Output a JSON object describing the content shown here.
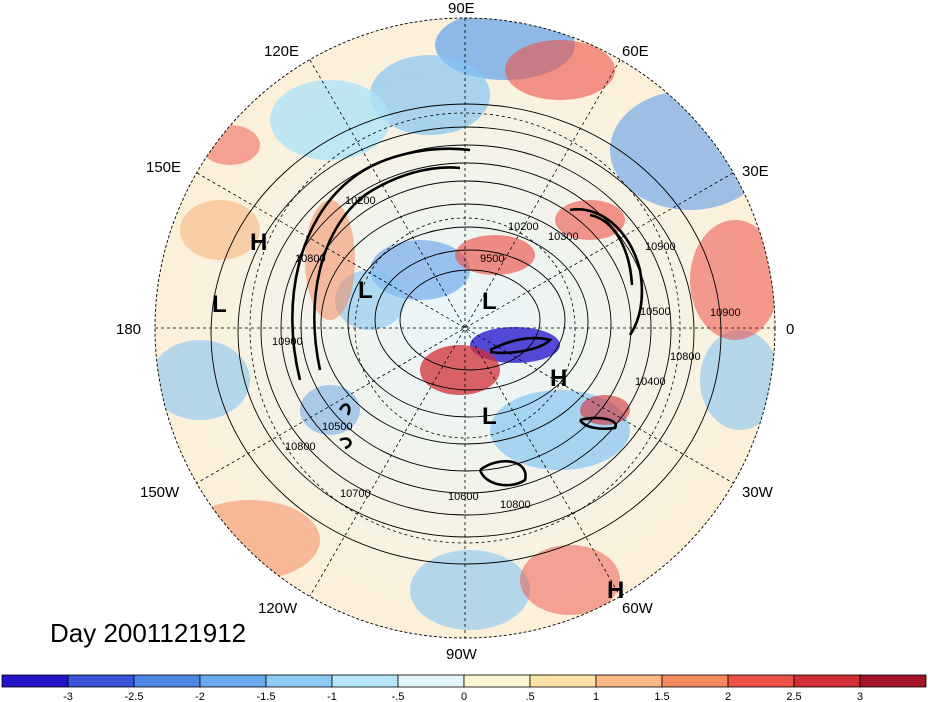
{
  "title": "Day 2001121912",
  "longitude_labels": {
    "lon_90e": "90E",
    "lon_60e": "60E",
    "lon_30e": "30E",
    "lon_0": "0",
    "lon_30w": "30W",
    "lon_60w": "60W",
    "lon_90w": "90W",
    "lon_120w": "120W",
    "lon_150w": "150W",
    "lon_180": "180",
    "lon_150e": "150E",
    "lon_120e": "120E"
  },
  "pressure_systems": {
    "h1": "H",
    "l1": "L",
    "l2": "L",
    "l3": "L",
    "h2": "H",
    "l4": "L",
    "h3": "H"
  },
  "contour_labels": {
    "c1": "10200",
    "c2": "9500",
    "c3": "10200",
    "c4": "10900",
    "c5": "10800",
    "c6": "10700",
    "c7": "10600",
    "c8": "10800",
    "c9": "10800",
    "c10": "10400",
    "c11": "10500",
    "c12": "10900",
    "c13": "10800",
    "c14": "10300",
    "c15": "10500",
    "c16": "10900"
  },
  "colorbar": {
    "ticks": [
      "-3",
      "-2.5",
      "-2",
      "-1.5",
      "-1",
      "-.5",
      "0",
      ".5",
      "1",
      "1.5",
      "2",
      "2.5",
      "3"
    ],
    "colors": [
      "#2a1fd0",
      "#3b6fe0",
      "#5f9fea",
      "#86c4f2",
      "#aee4f7",
      "#d9f3fb",
      "#fdf6d2",
      "#fbe3a8",
      "#f9b882",
      "#f48a5e",
      "#ec5147",
      "#d22f35",
      "#a3142a"
    ]
  }
}
